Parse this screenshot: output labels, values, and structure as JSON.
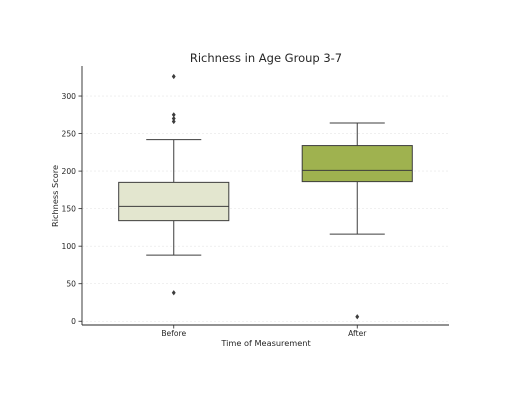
{
  "chart_data": {
    "type": "box",
    "title": "Richness in Age Group 3-7",
    "xlabel": "Time of Measurement",
    "ylabel": "Richness Score",
    "ylim": [
      -5,
      340
    ],
    "yticks": [
      0,
      50,
      100,
      150,
      200,
      250,
      300
    ],
    "grid": true,
    "categories": [
      "Before",
      "After"
    ],
    "boxes": [
      {
        "name": "Before",
        "whisker_low": 88,
        "q1": 134,
        "median": 153,
        "q3": 185,
        "whisker_high": 242,
        "fliers": [
          38,
          266,
          270,
          275,
          326
        ],
        "color": "#e3e6cf"
      },
      {
        "name": "After",
        "whisker_low": 116,
        "q1": 186,
        "median": 201,
        "q3": 234,
        "whisker_high": 264,
        "fliers": [
          6
        ],
        "color": "#9fb24f"
      }
    ]
  }
}
